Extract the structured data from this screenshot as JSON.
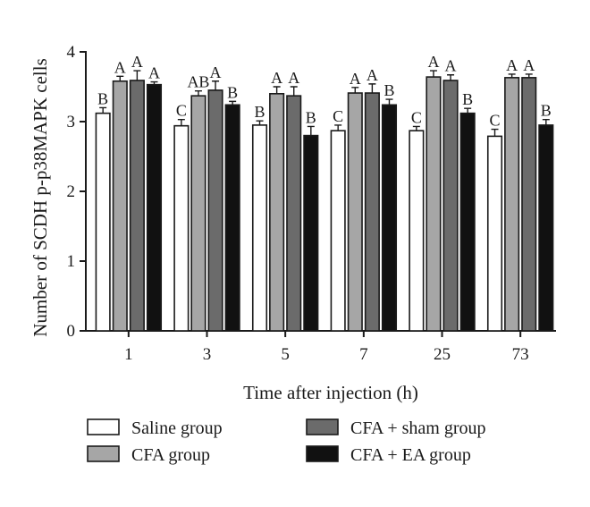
{
  "chart_data": {
    "type": "bar",
    "title": "",
    "xlabel": "Time after injection (h)",
    "ylabel": "Number of SCDH p-p38MAPK cells",
    "ylim": [
      0,
      4
    ],
    "yticks": [
      "0",
      "1",
      "2",
      "3",
      "4"
    ],
    "categories": [
      "1",
      "3",
      "5",
      "7",
      "25",
      "73"
    ],
    "grid": false,
    "legend_position": "bottom",
    "series": [
      {
        "name": "Saline group",
        "color": "#ffffff",
        "values": [
          3.12,
          2.94,
          2.95,
          2.87,
          2.87,
          2.79
        ],
        "errors": [
          0.08,
          0.09,
          0.06,
          0.08,
          0.06,
          0.1
        ],
        "letters": [
          "B",
          "C",
          "B",
          "C",
          "C",
          "C"
        ]
      },
      {
        "name": "CFA group",
        "color": "#a6a6a6",
        "values": [
          3.58,
          3.37,
          3.4,
          3.41,
          3.64,
          3.63
        ],
        "errors": [
          0.07,
          0.07,
          0.1,
          0.08,
          0.09,
          0.05
        ],
        "letters": [
          "A",
          "AB",
          "A",
          "A",
          "A",
          "A"
        ]
      },
      {
        "name": "CFA + sham group",
        "color": "#6b6b6b",
        "values": [
          3.59,
          3.45,
          3.37,
          3.41,
          3.59,
          3.63
        ],
        "errors": [
          0.14,
          0.13,
          0.13,
          0.13,
          0.08,
          0.05
        ],
        "letters": [
          "A",
          "A",
          "A",
          "A",
          "A",
          "A"
        ]
      },
      {
        "name": "CFA + EA group",
        "color": "#111111",
        "values": [
          3.53,
          3.24,
          2.8,
          3.24,
          3.12,
          2.95
        ],
        "errors": [
          0.04,
          0.05,
          0.13,
          0.08,
          0.07,
          0.08
        ],
        "letters": [
          "A",
          "B",
          "B",
          "B",
          "B",
          "B"
        ]
      }
    ]
  }
}
